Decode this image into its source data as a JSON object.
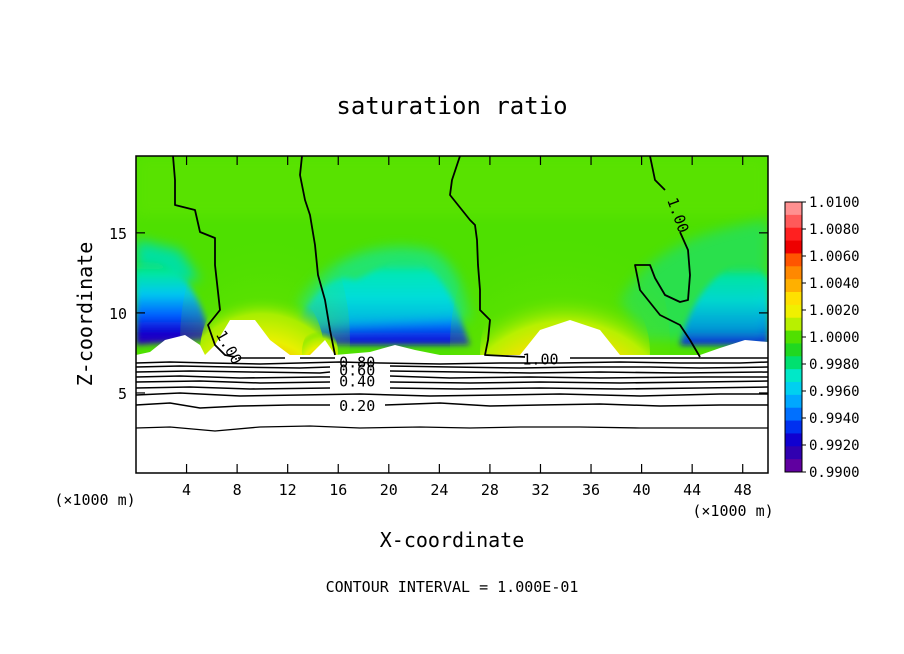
{
  "chart_data": {
    "type": "heatmap",
    "title": "saturation ratio",
    "xlabel": "X-coordinate",
    "ylabel": "Z-coordinate",
    "x_unit": "(×1000 m)",
    "z_unit": "(×1000 m)",
    "xlim": [
      0,
      50
    ],
    "ylim": [
      0,
      19.8
    ],
    "x_ticks": [
      "4",
      "8",
      "12",
      "16",
      "20",
      "24",
      "28",
      "32",
      "36",
      "40",
      "44",
      "48"
    ],
    "y_ticks": [
      "5",
      "10",
      "15"
    ],
    "footer": "CONTOUR INTERVAL = 1.000E-01",
    "colorbar": {
      "labels": [
        "1.0100",
        "1.0080",
        "1.0060",
        "1.0040",
        "1.0020",
        "1.0000",
        "0.9980",
        "0.9960",
        "0.9940",
        "0.9920",
        "0.9900"
      ],
      "levels": [
        1.01,
        1.009,
        1.008,
        1.007,
        1.006,
        1.005,
        1.004,
        1.003,
        1.002,
        1.001,
        1.0,
        0.999,
        0.998,
        0.997,
        0.996,
        0.995,
        0.994,
        0.993,
        0.992,
        0.991,
        0.99
      ],
      "colors": [
        "#ff9090",
        "#ff5a5a",
        "#ff2020",
        "#ee0000",
        "#ff5500",
        "#ff8800",
        "#ffb000",
        "#ffe000",
        "#f0f000",
        "#b8f000",
        "#50e000",
        "#20d820",
        "#00e070",
        "#00e8c8",
        "#00d0f0",
        "#00a8ff",
        "#0070ff",
        "#0030f0",
        "#1000d0",
        "#3000b0",
        "#6000a0"
      ]
    },
    "contour_labels": [
      {
        "text": "1.00",
        "x": 7.0,
        "z": 8.0
      },
      {
        "text": "1.00",
        "x": 32.0,
        "z": 7.1
      },
      {
        "text": "1.00",
        "x": 42.5,
        "z": 16.3
      },
      {
        "text": "0.80",
        "x": 17.5,
        "z": 6.9
      },
      {
        "text": "0.60",
        "x": 17.5,
        "z": 6.4
      },
      {
        "text": "0.40",
        "x": 17.5,
        "z": 5.7
      },
      {
        "text": "0.20",
        "x": 17.5,
        "z": 4.2
      }
    ]
  }
}
